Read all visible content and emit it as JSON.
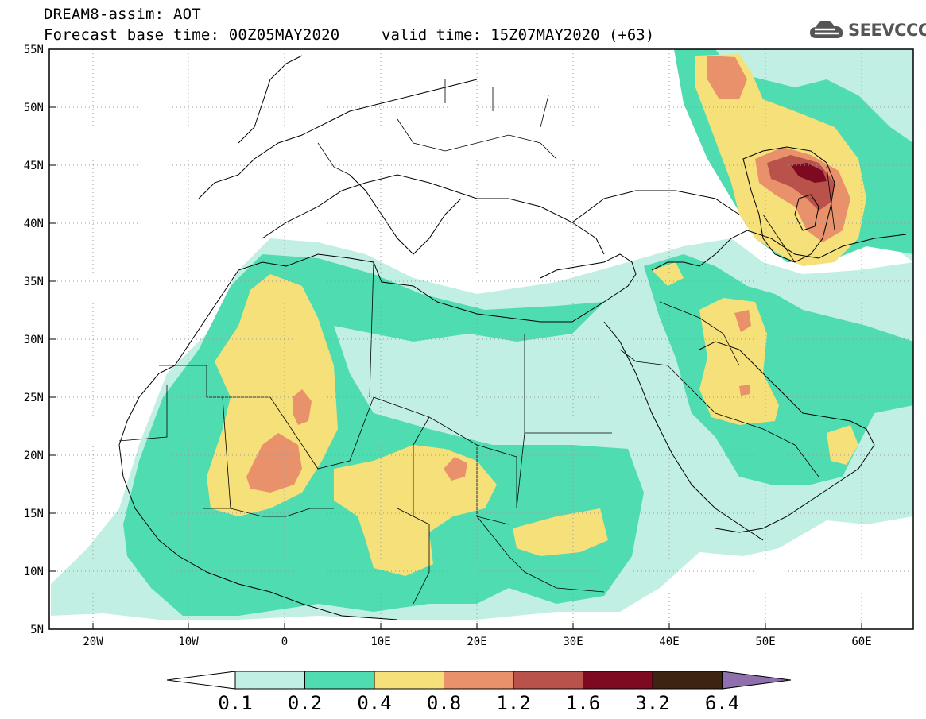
{
  "header": {
    "line1": "DREAM8-assim: AOT",
    "line2": "Forecast base time: 00Z05MAY2020",
    "valid": "valid time: 15Z07MAY2020 (+63)"
  },
  "logo": {
    "text": "SEEVCCC",
    "icon": "cloud-icon"
  },
  "map": {
    "lon_range": [
      -25,
      65
    ],
    "lat_range": [
      5,
      55
    ],
    "lat_ticks": [
      "55N",
      "50N",
      "45N",
      "40N",
      "35N",
      "30N",
      "25N",
      "20N",
      "15N",
      "10N",
      "5N"
    ],
    "lon_ticks": [
      "20W",
      "10W",
      "0",
      "10E",
      "20E",
      "30E",
      "40E",
      "50E",
      "60E"
    ],
    "grid": "dotted"
  },
  "colorbar": {
    "labels": [
      "0.1",
      "0.2",
      "0.4",
      "0.8",
      "1.2",
      "1.6",
      "3.2",
      "6.4"
    ],
    "colors": [
      "#ffffff",
      "#c2efe4",
      "#4fdcb0",
      "#f5e07a",
      "#e8916a",
      "#b8524a",
      "#7e0a22",
      "#3d2410",
      "#8f6fae"
    ]
  }
}
